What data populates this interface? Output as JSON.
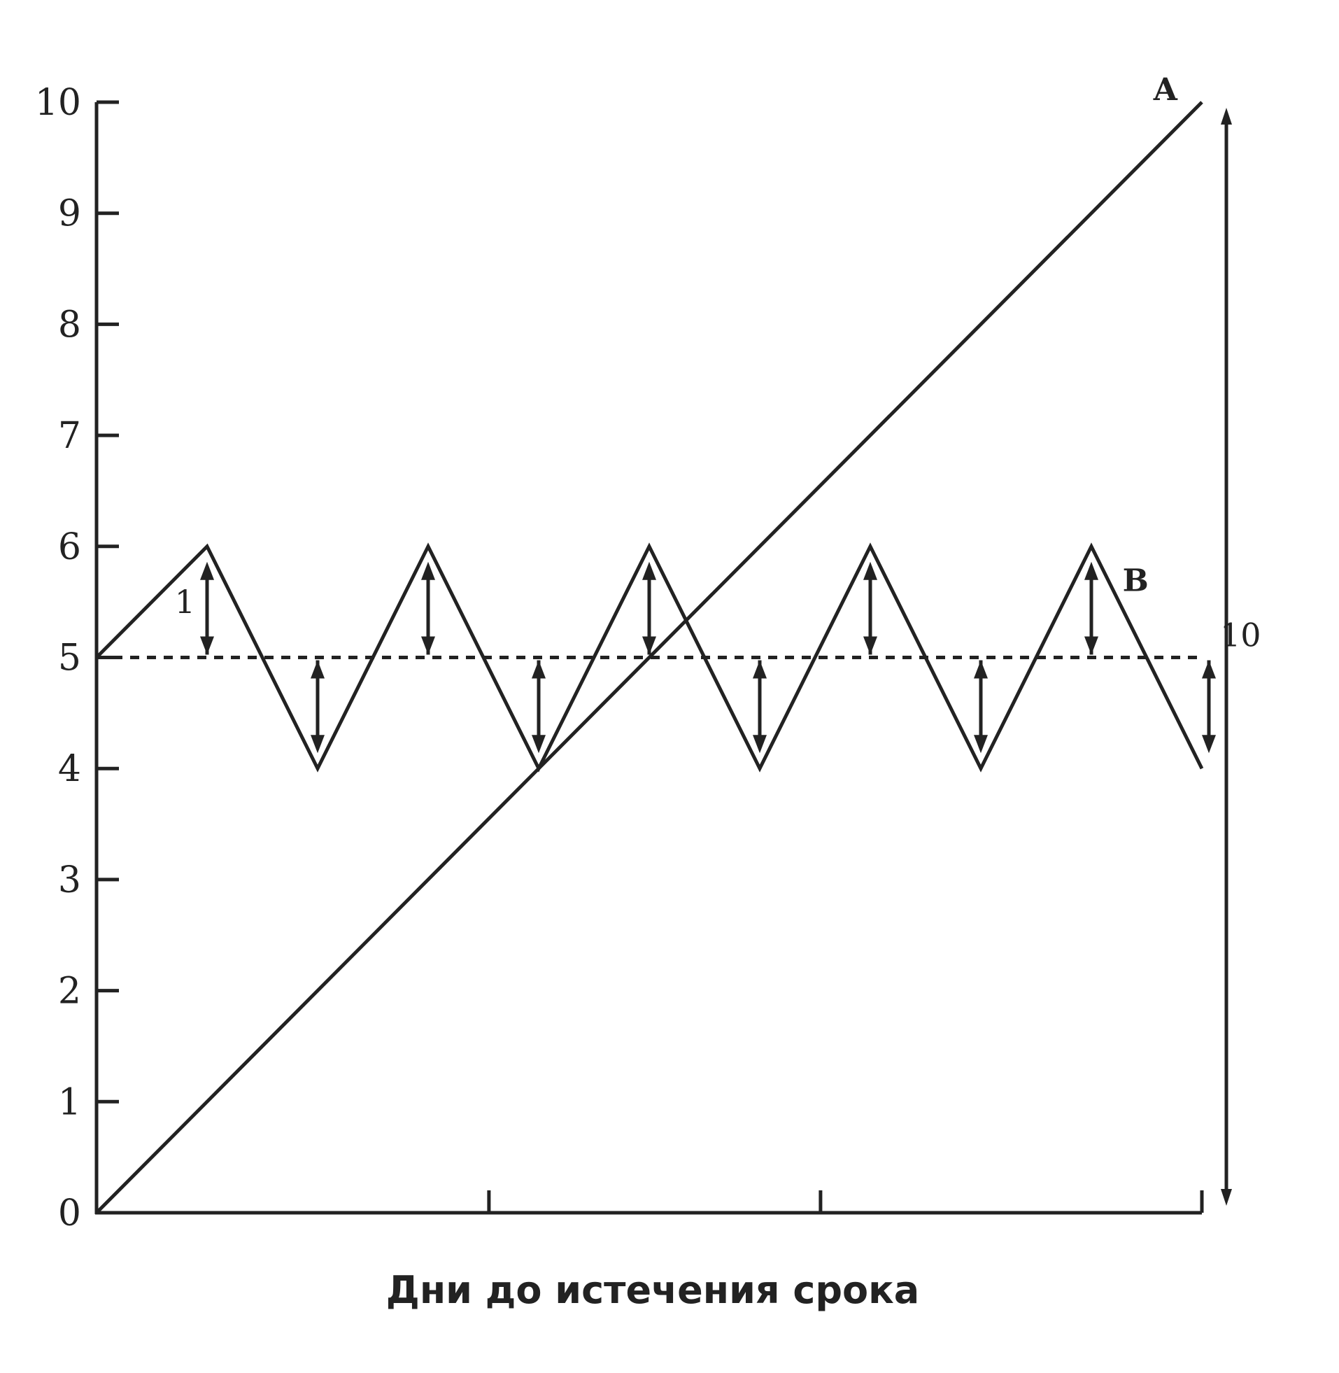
{
  "chart_data": {
    "type": "line",
    "title": "",
    "xlabel": "Дни до истечения срока",
    "ylabel": "",
    "xlim": [
      0,
      10
    ],
    "ylim": [
      0,
      10
    ],
    "y_ticks": [
      0,
      1,
      2,
      3,
      4,
      5,
      6,
      7,
      8,
      9,
      10
    ],
    "y_tick_labels": [
      "0",
      "1",
      "2",
      "3",
      "4",
      "5",
      "6",
      "7",
      "8",
      "9",
      "10"
    ],
    "x_ticks": [
      0,
      3.55,
      6.55,
      10
    ],
    "x_tick_labels": [],
    "grid": false,
    "series": [
      {
        "name": "A",
        "x": [
          0,
          10
        ],
        "y": [
          0,
          10
        ]
      },
      {
        "name": "B",
        "x": [
          0,
          1,
          2,
          3,
          4,
          5,
          6,
          7,
          8,
          9,
          10
        ],
        "y": [
          5,
          6,
          4,
          6,
          4,
          6,
          4,
          6,
          4,
          6,
          4
        ]
      },
      {
        "name": "",
        "style": "dashed",
        "x": [
          0,
          10
        ],
        "y": [
          5,
          5
        ]
      }
    ],
    "annotations": [
      {
        "text": "1",
        "x": 0.8,
        "y": 5.4
      },
      {
        "text": "10",
        "x": 10.35,
        "y": 5.1
      }
    ]
  }
}
